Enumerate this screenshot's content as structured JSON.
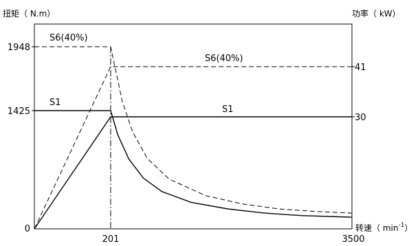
{
  "chart_data": {
    "type": "line",
    "y_left_label": "扭矩（ N.m）",
    "y_right_label": "功率（ kW）",
    "x_label_prefix": "转速（ min",
    "x_label_sup": "-1",
    "x_label_suffix": "）",
    "x_ticks": [
      "201",
      "3500"
    ],
    "y_left_ticks": [
      "0",
      "1425",
      "1948"
    ],
    "y_right_ticks": [
      "30",
      "41"
    ],
    "xlim": [
      0,
      3500
    ],
    "ylim_torque": [
      0,
      2300
    ],
    "ylim_power": [
      0,
      55
    ],
    "corner_x": 201,
    "series": [
      {
        "name": "S6(40%)",
        "quantity": "torque",
        "style": "dashed",
        "points": [
          [
            0,
            1948
          ],
          [
            201,
            1948
          ],
          [
            360,
            1500
          ],
          [
            500,
            1170
          ],
          [
            700,
            850
          ],
          [
            1000,
            600
          ],
          [
            1500,
            400
          ],
          [
            2000,
            300
          ],
          [
            2500,
            240
          ],
          [
            3000,
            210
          ],
          [
            3500,
            190
          ]
        ]
      },
      {
        "name": "S6(40%)",
        "quantity": "power",
        "style": "dashed",
        "points": [
          [
            0,
            0
          ],
          [
            201,
            41
          ],
          [
            3500,
            41
          ]
        ]
      },
      {
        "name": "S1",
        "quantity": "torque",
        "style": "solid",
        "points": [
          [
            0,
            1425
          ],
          [
            201,
            1425
          ],
          [
            300,
            1130
          ],
          [
            450,
            840
          ],
          [
            650,
            610
          ],
          [
            900,
            450
          ],
          [
            1300,
            320
          ],
          [
            1800,
            240
          ],
          [
            2300,
            190
          ],
          [
            2800,
            160
          ],
          [
            3500,
            140
          ]
        ]
      },
      {
        "name": "S1",
        "quantity": "power",
        "style": "solid",
        "points": [
          [
            0,
            0
          ],
          [
            201,
            30
          ],
          [
            3500,
            30
          ]
        ]
      }
    ],
    "annotations": [
      "S6(40%)",
      "S6(40%)",
      "S1",
      "S1"
    ]
  }
}
